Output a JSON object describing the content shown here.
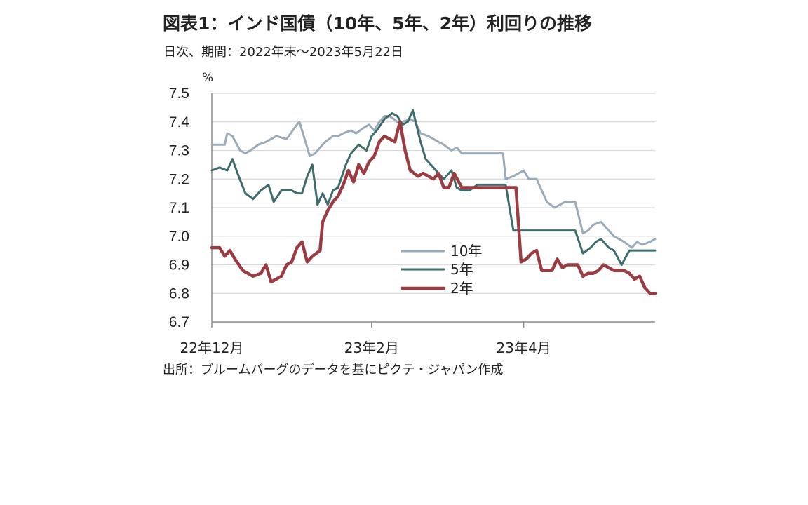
{
  "header": {
    "title": "図表1：インド国債（10年、5年、2年）利回りの推移",
    "subtitle": "日次、期間：2022年末～2023年5月22日"
  },
  "footer": {
    "source": "出所：ブルームバーグのデータを基にピクテ・ジャパン作成"
  },
  "chart_data": {
    "type": "line",
    "title": "図表1：インド国債（10年、5年、2年）利回りの推移",
    "subtitle": "日次、期間：2022年末～2023年5月22日",
    "ylabel": "%",
    "ylim": [
      6.7,
      7.5
    ],
    "yticks": [
      "7.5",
      "7.4",
      "7.3",
      "7.2",
      "7.1",
      "7.0",
      "6.9",
      "6.8",
      "6.7"
    ],
    "xlim": [
      "2022-12-01",
      "2023-05-22"
    ],
    "xticks": [
      {
        "label": "22年12月",
        "date": "2022-12-01"
      },
      {
        "label": "23年2月",
        "date": "2023-02-01"
      },
      {
        "label": "23年4月",
        "date": "2023-04-01"
      }
    ],
    "grid": true,
    "legend_position": "bottom-center",
    "series": [
      {
        "name": "10年",
        "color": "#9aaab8",
        "width": 3,
        "x": [
          "2022-12-01",
          "2022-12-06",
          "2022-12-07",
          "2022-12-09",
          "2022-12-12",
          "2022-12-14",
          "2022-12-16",
          "2022-12-19",
          "2022-12-22",
          "2022-12-24",
          "2022-12-26",
          "2022-12-30",
          "2023-01-03",
          "2023-01-04",
          "2023-01-06",
          "2023-01-08",
          "2023-01-10",
          "2023-01-12",
          "2023-01-14",
          "2023-01-17",
          "2023-01-19",
          "2023-01-21",
          "2023-01-24",
          "2023-01-26",
          "2023-01-29",
          "2023-01-31",
          "2023-02-02",
          "2023-02-04",
          "2023-02-06",
          "2023-02-08",
          "2023-02-11",
          "2023-02-13",
          "2023-02-16",
          "2023-02-18",
          "2023-02-20",
          "2023-02-23",
          "2023-02-25",
          "2023-02-27",
          "2023-03-01",
          "2023-03-04",
          "2023-03-06",
          "2023-03-08",
          "2023-03-10",
          "2023-03-13",
          "2023-03-15",
          "2023-03-18",
          "2023-03-20",
          "2023-03-24",
          "2023-03-25",
          "2023-03-28",
          "2023-03-30",
          "2023-04-01",
          "2023-04-03",
          "2023-04-06",
          "2023-04-08",
          "2023-04-10",
          "2023-04-13",
          "2023-04-15",
          "2023-04-17",
          "2023-04-19",
          "2023-04-21",
          "2023-04-24",
          "2023-04-26",
          "2023-04-28",
          "2023-05-01",
          "2023-05-03",
          "2023-05-06",
          "2023-05-08",
          "2023-05-10",
          "2023-05-13",
          "2023-05-15",
          "2023-05-17",
          "2023-05-20",
          "2023-05-22"
        ],
        "y": [
          7.32,
          7.32,
          7.36,
          7.35,
          7.3,
          7.29,
          7.3,
          7.32,
          7.33,
          7.34,
          7.35,
          7.34,
          7.39,
          7.4,
          7.34,
          7.28,
          7.29,
          7.31,
          7.33,
          7.35,
          7.35,
          7.36,
          7.37,
          7.36,
          7.38,
          7.39,
          7.37,
          7.4,
          7.42,
          7.42,
          7.4,
          7.4,
          7.41,
          7.4,
          7.36,
          7.35,
          7.34,
          7.33,
          7.32,
          7.3,
          7.31,
          7.29,
          7.29,
          7.29,
          7.29,
          7.29,
          7.29,
          7.29,
          7.2,
          7.21,
          7.22,
          7.23,
          7.2,
          7.2,
          7.16,
          7.12,
          7.1,
          7.11,
          7.12,
          7.12,
          7.12,
          7.01,
          7.02,
          7.04,
          7.05,
          7.03,
          7.0,
          6.99,
          6.98,
          6.96,
          6.98,
          6.97,
          6.98,
          6.99
        ]
      },
      {
        "name": "5年",
        "color": "#3e6c6c",
        "width": 3,
        "x": [
          "2022-12-01",
          "2022-12-04",
          "2022-12-07",
          "2022-12-09",
          "2022-12-11",
          "2022-12-14",
          "2022-12-17",
          "2022-12-20",
          "2022-12-23",
          "2022-12-25",
          "2022-12-28",
          "2023-01-01",
          "2023-01-03",
          "2023-01-05",
          "2023-01-07",
          "2023-01-09",
          "2023-01-11",
          "2023-01-13",
          "2023-01-15",
          "2023-01-17",
          "2023-01-19",
          "2023-01-22",
          "2023-01-24",
          "2023-01-27",
          "2023-01-30",
          "2023-02-01",
          "2023-02-03",
          "2023-02-06",
          "2023-02-09",
          "2023-02-11",
          "2023-02-13",
          "2023-02-15",
          "2023-02-17",
          "2023-02-20",
          "2023-02-22",
          "2023-02-24",
          "2023-02-27",
          "2023-03-01",
          "2023-03-04",
          "2023-03-06",
          "2023-03-08",
          "2023-03-11",
          "2023-03-14",
          "2023-03-18",
          "2023-03-22",
          "2023-03-25",
          "2023-03-28",
          "2023-03-31",
          "2023-04-03",
          "2023-04-06",
          "2023-04-09",
          "2023-04-12",
          "2023-04-15",
          "2023-04-18",
          "2023-04-21",
          "2023-04-24",
          "2023-04-27",
          "2023-04-29",
          "2023-05-01",
          "2023-05-04",
          "2023-05-06",
          "2023-05-09",
          "2023-05-12",
          "2023-05-15",
          "2023-05-17",
          "2023-05-19",
          "2023-05-22"
        ],
        "y": [
          7.23,
          7.24,
          7.23,
          7.27,
          7.22,
          7.15,
          7.13,
          7.16,
          7.18,
          7.12,
          7.16,
          7.16,
          7.15,
          7.15,
          7.21,
          7.25,
          7.11,
          7.15,
          7.11,
          7.16,
          7.17,
          7.25,
          7.29,
          7.32,
          7.3,
          7.35,
          7.37,
          7.41,
          7.43,
          7.42,
          7.39,
          7.4,
          7.44,
          7.33,
          7.27,
          7.25,
          7.22,
          7.2,
          7.23,
          7.17,
          7.16,
          7.16,
          7.18,
          7.18,
          7.18,
          7.18,
          7.02,
          7.02,
          7.02,
          7.02,
          7.02,
          7.02,
          7.02,
          7.02,
          7.02,
          6.94,
          6.96,
          6.98,
          6.99,
          6.96,
          6.95,
          6.9,
          6.95,
          6.95,
          6.95,
          6.95,
          6.95
        ]
      },
      {
        "name": "2年",
        "color": "#9b3b42",
        "width": 4.5,
        "x": [
          "2022-12-01",
          "2022-12-04",
          "2022-12-06",
          "2022-12-08",
          "2022-12-10",
          "2022-12-13",
          "2022-12-15",
          "2022-12-17",
          "2022-12-20",
          "2022-12-22",
          "2022-12-24",
          "2022-12-26",
          "2022-12-28",
          "2022-12-30",
          "2023-01-01",
          "2023-01-03",
          "2023-01-05",
          "2023-01-07",
          "2023-01-09",
          "2023-01-12",
          "2023-01-13",
          "2023-01-15",
          "2023-01-17",
          "2023-01-19",
          "2023-01-21",
          "2023-01-23",
          "2023-01-25",
          "2023-01-27",
          "2023-01-29",
          "2023-01-31",
          "2023-02-02",
          "2023-02-04",
          "2023-02-06",
          "2023-02-08",
          "2023-02-10",
          "2023-02-12",
          "2023-02-14",
          "2023-02-16",
          "2023-02-19",
          "2023-02-21",
          "2023-02-23",
          "2023-02-25",
          "2023-02-27",
          "2023-03-01",
          "2023-03-03",
          "2023-03-05",
          "2023-03-08",
          "2023-03-10",
          "2023-03-12",
          "2023-03-15",
          "2023-03-18",
          "2023-03-22",
          "2023-03-25",
          "2023-03-29",
          "2023-03-31",
          "2023-04-02",
          "2023-04-04",
          "2023-04-06",
          "2023-04-08",
          "2023-04-10",
          "2023-04-12",
          "2023-04-14",
          "2023-04-16",
          "2023-04-18",
          "2023-04-20",
          "2023-04-22",
          "2023-04-24",
          "2023-04-26",
          "2023-04-28",
          "2023-04-30",
          "2023-05-02",
          "2023-05-04",
          "2023-05-06",
          "2023-05-08",
          "2023-05-10",
          "2023-05-12",
          "2023-05-14",
          "2023-05-16",
          "2023-05-18",
          "2023-05-20",
          "2023-05-22"
        ],
        "y": [
          6.96,
          6.96,
          6.93,
          6.95,
          6.92,
          6.88,
          6.87,
          6.86,
          6.87,
          6.9,
          6.84,
          6.85,
          6.86,
          6.9,
          6.91,
          6.96,
          6.98,
          6.91,
          6.93,
          6.95,
          7.05,
          7.09,
          7.12,
          7.14,
          7.18,
          7.23,
          7.19,
          7.25,
          7.22,
          7.26,
          7.28,
          7.33,
          7.35,
          7.34,
          7.33,
          7.4,
          7.3,
          7.23,
          7.21,
          7.22,
          7.21,
          7.2,
          7.22,
          7.17,
          7.17,
          7.22,
          7.17,
          7.17,
          7.17,
          7.17,
          7.17,
          7.17,
          7.17,
          7.17,
          6.91,
          6.92,
          6.94,
          6.95,
          6.88,
          6.88,
          6.88,
          6.92,
          6.89,
          6.9,
          6.9,
          6.9,
          6.86,
          6.87,
          6.87,
          6.88,
          6.9,
          6.89,
          6.88,
          6.88,
          6.88,
          6.87,
          6.85,
          6.86,
          6.82,
          6.8,
          6.8
        ]
      }
    ]
  }
}
